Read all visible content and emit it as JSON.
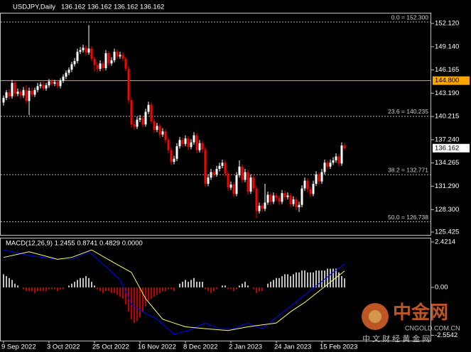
{
  "chart_data": [
    {
      "type": "candlestick",
      "title": "USDJPY,Daily",
      "subtitle": "136.162 136.162 136.162 136.162",
      "up_color": "#ffffff",
      "down_color": "#ff0000",
      "ylim": [
        125.06,
        153.3
      ],
      "yticks": [
        {
          "value": 152.12,
          "label": "152.120"
        },
        {
          "value": 149.14,
          "label": "149.140"
        },
        {
          "value": 146.165,
          "label": "146.165"
        },
        {
          "value": 143.19,
          "label": "143.190"
        },
        {
          "value": 140.215,
          "label": "140.215"
        },
        {
          "value": 137.24,
          "label": "137.240"
        },
        {
          "value": 134.265,
          "label": "134.265"
        },
        {
          "value": 131.29,
          "label": "131.290"
        },
        {
          "value": 128.3,
          "label": "128.300"
        },
        {
          "value": 125.425,
          "label": "125.425"
        }
      ],
      "levels": [
        {
          "value": 152.3,
          "label": "0.0 = 152.300"
        },
        {
          "value": 140.235,
          "label": "23.6 = 140.235"
        },
        {
          "value": 132.771,
          "label": "38.2 = 132.771"
        },
        {
          "value": 126.738,
          "label": "50.0 = 126.738"
        }
      ],
      "hline": {
        "value": 144.8,
        "label": "144.800",
        "color": "#ffa500"
      },
      "last_price": {
        "value": 136.162,
        "label": "136.162"
      },
      "open": [
        142.0,
        142.6,
        143.3,
        142.8,
        144.5,
        143.1,
        143.4,
        142.9,
        143.6,
        142.2,
        143.5,
        143.0,
        143.6,
        144.1,
        144.3,
        143.8,
        144.2,
        144.7,
        144.4,
        144.6,
        144.1,
        144.8,
        145.3,
        145.8,
        146.2,
        146.9,
        147.3,
        148.5,
        148.7,
        149.0,
        148.4,
        148.9,
        147.6,
        146.8,
        146.3,
        147.0,
        146.4,
        148.3,
        147.0,
        147.4,
        148.5,
        147.9,
        148.1,
        147.6,
        146.3,
        142.3,
        139.2,
        138.9,
        139.8,
        140.0,
        139.2,
        140.8,
        141.7,
        139.6,
        138.5,
        139.0,
        137.9,
        138.3,
        137.2,
        135.9,
        134.4,
        134.8,
        136.4,
        137.2,
        136.7,
        137.4,
        136.3,
        136.9,
        137.8,
        135.9,
        136.8,
        136.0,
        131.6,
        132.4,
        133.1,
        132.8,
        133.5,
        133.9,
        134.3,
        132.9,
        131.1,
        131.5,
        130.3,
        132.7,
        133.8,
        132.1,
        133.1,
        130.6,
        132.4,
        131.0,
        128.1,
        128.8,
        128.4,
        129.2,
        130.2,
        129.3,
        130.1,
        129.8,
        129.3,
        130.4,
        129.9,
        130.1,
        129.0,
        129.6,
        128.6,
        128.9,
        131.0,
        132.0,
        130.9,
        130.3,
        131.6,
        132.8,
        131.9,
        133.1,
        134.3,
        133.8,
        134.3,
        134.6,
        135.1,
        134.2,
        136.5
      ],
      "high": [
        142.9,
        143.6,
        143.7,
        144.9,
        144.8,
        143.8,
        143.7,
        144.0,
        144.2,
        143.9,
        143.9,
        143.9,
        144.5,
        144.6,
        144.7,
        144.5,
        145.0,
        145.0,
        144.9,
        144.9,
        145.1,
        145.6,
        146.1,
        146.5,
        147.2,
        147.7,
        148.9,
        149.1,
        149.4,
        149.3,
        151.9,
        149.2,
        147.9,
        147.1,
        147.4,
        147.3,
        148.7,
        148.6,
        147.8,
        148.9,
        148.8,
        148.5,
        148.4,
        147.9,
        146.6,
        142.6,
        139.6,
        140.2,
        140.4,
        140.3,
        141.2,
        142.1,
        142.0,
        139.9,
        139.4,
        139.3,
        138.7,
        138.6,
        137.5,
        136.2,
        135.2,
        136.8,
        137.6,
        137.5,
        137.8,
        137.7,
        137.3,
        138.2,
        138.1,
        137.2,
        137.1,
        136.3,
        132.8,
        133.5,
        133.4,
        133.9,
        134.3,
        134.7,
        134.6,
        133.2,
        131.9,
        131.8,
        133.1,
        134.6,
        134.1,
        133.5,
        133.4,
        132.8,
        132.7,
        131.3,
        129.2,
        129.1,
        131.6,
        130.6,
        130.5,
        130.5,
        130.4,
        130.1,
        130.8,
        130.7,
        130.5,
        130.4,
        130.0,
        129.9,
        129.3,
        131.4,
        132.4,
        132.3,
        131.2,
        132.0,
        133.2,
        133.1,
        133.5,
        134.7,
        134.6,
        134.7,
        135.0,
        135.5,
        135.4,
        136.9,
        136.8
      ],
      "low": [
        141.6,
        142.3,
        142.4,
        142.5,
        142.7,
        142.8,
        142.5,
        142.6,
        141.9,
        140.4,
        142.7,
        142.7,
        143.3,
        143.8,
        143.5,
        143.5,
        143.9,
        144.1,
        144.1,
        143.8,
        143.8,
        144.5,
        145.0,
        145.5,
        145.9,
        146.6,
        147.0,
        148.2,
        148.4,
        148.0,
        148.1,
        147.3,
        146.0,
        145.9,
        146.0,
        146.0,
        146.1,
        146.7,
        146.7,
        147.1,
        147.6,
        147.6,
        147.3,
        146.0,
        141.9,
        138.8,
        138.5,
        138.6,
        139.5,
        138.8,
        138.9,
        140.5,
        139.3,
        138.1,
        138.2,
        137.5,
        137.6,
        136.8,
        135.5,
        134.0,
        134.1,
        134.5,
        136.1,
        136.3,
        136.4,
        135.9,
        136.0,
        136.6,
        135.5,
        135.6,
        135.6,
        131.2,
        131.3,
        132.1,
        132.4,
        132.5,
        133.2,
        133.6,
        132.5,
        130.7,
        130.8,
        129.9,
        130.0,
        132.4,
        131.7,
        131.8,
        130.2,
        130.3,
        130.6,
        127.2,
        127.8,
        128.0,
        128.1,
        128.9,
        128.9,
        129.0,
        129.4,
        128.9,
        129.0,
        129.5,
        129.6,
        128.6,
        128.7,
        128.2,
        128.0,
        128.6,
        130.7,
        130.5,
        129.9,
        130.0,
        131.3,
        131.5,
        131.6,
        132.8,
        133.4,
        133.5,
        134.0,
        134.3,
        133.8,
        133.9,
        136.0
      ],
      "close": [
        142.6,
        143.3,
        142.8,
        144.5,
        143.1,
        143.4,
        142.9,
        143.6,
        142.2,
        143.5,
        143.0,
        143.6,
        144.1,
        144.3,
        143.8,
        144.2,
        144.7,
        144.4,
        144.6,
        144.1,
        144.8,
        145.3,
        145.8,
        146.2,
        146.9,
        147.3,
        148.5,
        148.7,
        149.0,
        148.4,
        148.9,
        147.6,
        146.8,
        146.3,
        147.0,
        146.4,
        148.3,
        147.0,
        147.4,
        148.5,
        147.9,
        148.1,
        147.6,
        146.3,
        142.3,
        139.2,
        138.9,
        139.8,
        140.0,
        139.2,
        140.8,
        141.7,
        139.6,
        138.5,
        139.0,
        137.9,
        138.3,
        137.2,
        135.9,
        134.4,
        134.8,
        136.4,
        137.2,
        136.7,
        137.4,
        136.3,
        136.9,
        137.8,
        135.9,
        136.8,
        136.0,
        131.6,
        132.4,
        133.1,
        132.8,
        133.5,
        133.9,
        134.3,
        132.9,
        131.1,
        131.5,
        130.3,
        132.7,
        133.8,
        132.1,
        133.1,
        130.6,
        132.4,
        131.0,
        128.1,
        128.8,
        128.4,
        129.2,
        130.2,
        129.3,
        130.1,
        129.8,
        129.3,
        130.4,
        129.9,
        130.1,
        129.0,
        129.6,
        128.6,
        128.9,
        131.0,
        132.0,
        130.9,
        130.3,
        131.6,
        132.8,
        131.9,
        133.1,
        134.3,
        133.8,
        134.3,
        134.6,
        135.1,
        134.2,
        136.5,
        136.162
      ]
    },
    {
      "type": "macd",
      "title": "MACD(12,26,9) 1.2455 0.8741 0.4829 0.0000",
      "ylim": [
        -2.84,
        2.61
      ],
      "yticks": [
        2.4214,
        {
          "value": 0,
          "label": "0.00"
        },
        -2.5542
      ],
      "xticks": [
        {
          "value": 0,
          "label": "9 Sep 2022"
        },
        {
          "value": 16,
          "label": "3 Oct 2022"
        },
        {
          "value": 32,
          "label": "25 Oct 2022"
        },
        {
          "value": 48,
          "label": "16 Nov 2022"
        },
        {
          "value": 64,
          "label": "8 Dec 2022"
        },
        {
          "value": 80,
          "label": "2 Jan 2023"
        },
        {
          "value": 96,
          "label": "24 Jan 2023"
        },
        {
          "value": 112,
          "label": "15 Feb 2023"
        }
      ],
      "histogram": {
        "up_color": "#ffffff",
        "down_color": "#ff0000",
        "values": [
          0.7,
          0.6,
          0.5,
          0.4,
          0.2,
          0.1,
          0.0,
          -0.1,
          -0.2,
          -0.2,
          -0.2,
          -0.3,
          -0.2,
          -0.2,
          -0.2,
          -0.2,
          -0.1,
          -0.1,
          -0.1,
          -0.2,
          -0.1,
          -0.1,
          0.0,
          0.1,
          0.2,
          0.3,
          0.4,
          0.5,
          0.5,
          0.6,
          0.5,
          0.3,
          0.1,
          -0.1,
          -0.2,
          -0.3,
          -0.2,
          -0.2,
          -0.3,
          -0.3,
          -0.4,
          -0.5,
          -0.6,
          -0.9,
          -1.3,
          -1.7,
          -1.9,
          -1.8,
          -1.6,
          -1.3,
          -1.0,
          -0.7,
          -0.6,
          -0.5,
          -0.4,
          -0.3,
          -0.2,
          -0.2,
          -0.1,
          -0.1,
          -0.2,
          0.0,
          0.2,
          0.3,
          0.4,
          0.3,
          0.4,
          0.5,
          0.3,
          0.3,
          0.3,
          -0.1,
          -0.2,
          -0.3,
          -0.2,
          -0.1,
          0.0,
          0.1,
          0.1,
          -0.1,
          -0.1,
          -0.2,
          -0.1,
          0.1,
          0.2,
          0.3,
          0.1,
          0.0,
          -0.1,
          -0.3,
          -0.2,
          -0.2,
          0.0,
          0.2,
          0.3,
          0.4,
          0.5,
          0.5,
          0.6,
          0.7,
          0.7,
          0.6,
          0.7,
          0.8,
          0.8,
          0.9,
          0.9,
          0.8,
          0.8,
          0.8,
          0.9,
          0.9,
          0.9,
          0.9,
          1.0,
          1.0,
          1.0,
          1.0,
          0.8,
          0.6,
          0.4829
        ]
      },
      "lines": [
        {
          "color": "#0000ff",
          "x": [
            0,
            9,
            19,
            24,
            30,
            36,
            41,
            45,
            49,
            54,
            60,
            65,
            71,
            76,
            81,
            86,
            91,
            96,
            101,
            106,
            111,
            116,
            120
          ],
          "values": [
            2.0,
            1.7,
            1.5,
            1.5,
            1.9,
            1.1,
            0.4,
            -0.9,
            -1.3,
            -1.7,
            -2.5,
            -2.3,
            -1.9,
            -2.2,
            -2.2,
            -1.9,
            -2.2,
            -1.6,
            -1.0,
            -0.4,
            0.2,
            0.8,
            1.2455
          ]
        },
        {
          "color": "#ffff66",
          "x": [
            0,
            9,
            19,
            24,
            31,
            39,
            45,
            50,
            56,
            64,
            71,
            79,
            86,
            91,
            96,
            101,
            106,
            111,
            116,
            120
          ],
          "values": [
            1.6,
            1.9,
            1.5,
            1.6,
            2.0,
            1.3,
            0.8,
            -0.6,
            -1.7,
            -2.1,
            -2.2,
            -2.3,
            -2.1,
            -2.0,
            -1.9,
            -1.3,
            -0.8,
            -0.2,
            0.4,
            0.8741
          ]
        }
      ]
    }
  ],
  "watermark": {
    "name": "中金网",
    "url": "CNGOLD.COM.CN",
    "tagline": "中 文 财 经 黄 金 网"
  }
}
